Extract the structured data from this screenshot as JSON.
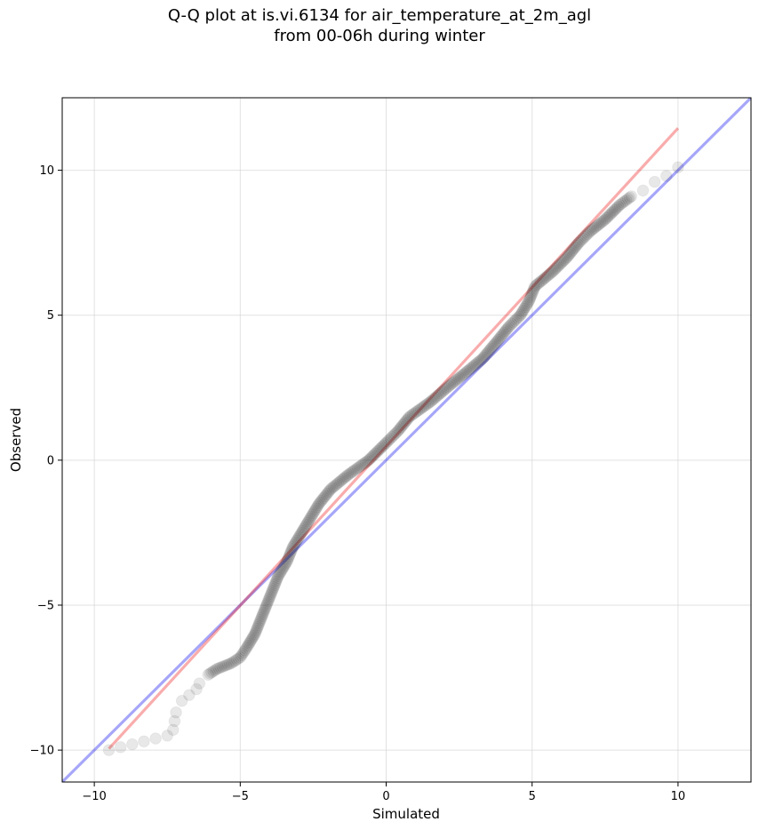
{
  "chart_data": {
    "type": "scatter",
    "title_line1": "Q-Q plot at is.vi.6134 for air_temperature_at_2m_agl",
    "title_line2": "from 00-06h during winter",
    "xlabel": "Simulated",
    "ylabel": "Observed",
    "xlim": [
      -11.1,
      12.5
    ],
    "ylim": [
      -11.1,
      12.5
    ],
    "xticks": [
      -10,
      -5,
      0,
      5,
      10
    ],
    "yticks": [
      -10,
      -5,
      0,
      5,
      10
    ],
    "xtick_labels": [
      "−10",
      "−5",
      "0",
      "5",
      "10"
    ],
    "ytick_labels": [
      "−10",
      "−5",
      "0",
      "5",
      "10"
    ],
    "grid": true,
    "reference_lines": [
      {
        "kind": "one-to-one",
        "color": "#0000ee",
        "x": [
          -11.1,
          12.5
        ],
        "y": [
          -11.1,
          12.5
        ]
      },
      {
        "kind": "fit",
        "color": "#ee1111",
        "x": [
          -9.5,
          10.0
        ],
        "y": [
          -9.95,
          11.45
        ]
      }
    ],
    "quantile_curve": [
      [
        -9.5,
        -10.0
      ],
      [
        -8.3,
        -9.7
      ],
      [
        -7.5,
        -9.5
      ],
      [
        -7.3,
        -9.3
      ],
      [
        -7.2,
        -8.7
      ],
      [
        -7.0,
        -8.3
      ],
      [
        -6.5,
        -7.9
      ],
      [
        -6.4,
        -7.7
      ],
      [
        -6.1,
        -7.4
      ],
      [
        -5.8,
        -7.2
      ],
      [
        -5.3,
        -7.0
      ],
      [
        -5.0,
        -6.8
      ],
      [
        -4.8,
        -6.5
      ],
      [
        -4.5,
        -6.0
      ],
      [
        -4.3,
        -5.5
      ],
      [
        -4.1,
        -5.0
      ],
      [
        -3.9,
        -4.5
      ],
      [
        -3.7,
        -4.0
      ],
      [
        -3.4,
        -3.5
      ],
      [
        -3.2,
        -3.0
      ],
      [
        -2.9,
        -2.5
      ],
      [
        -2.6,
        -2.0
      ],
      [
        -2.3,
        -1.5
      ],
      [
        -1.9,
        -1.0
      ],
      [
        -1.3,
        -0.5
      ],
      [
        -0.6,
        0.0
      ],
      [
        0.0,
        0.6
      ],
      [
        0.4,
        1.0
      ],
      [
        0.8,
        1.5
      ],
      [
        1.5,
        2.0
      ],
      [
        2.2,
        2.6
      ],
      [
        2.7,
        3.0
      ],
      [
        3.3,
        3.5
      ],
      [
        3.8,
        4.1
      ],
      [
        4.2,
        4.6
      ],
      [
        4.6,
        5.0
      ],
      [
        4.9,
        5.5
      ],
      [
        5.1,
        6.0
      ],
      [
        5.7,
        6.5
      ],
      [
        6.2,
        7.0
      ],
      [
        6.6,
        7.5
      ],
      [
        7.0,
        7.9
      ],
      [
        7.5,
        8.3
      ],
      [
        8.0,
        8.8
      ],
      [
        8.4,
        9.1
      ],
      [
        8.8,
        9.3
      ],
      [
        9.2,
        9.6
      ],
      [
        9.6,
        9.8
      ],
      [
        10.0,
        10.1
      ]
    ]
  }
}
